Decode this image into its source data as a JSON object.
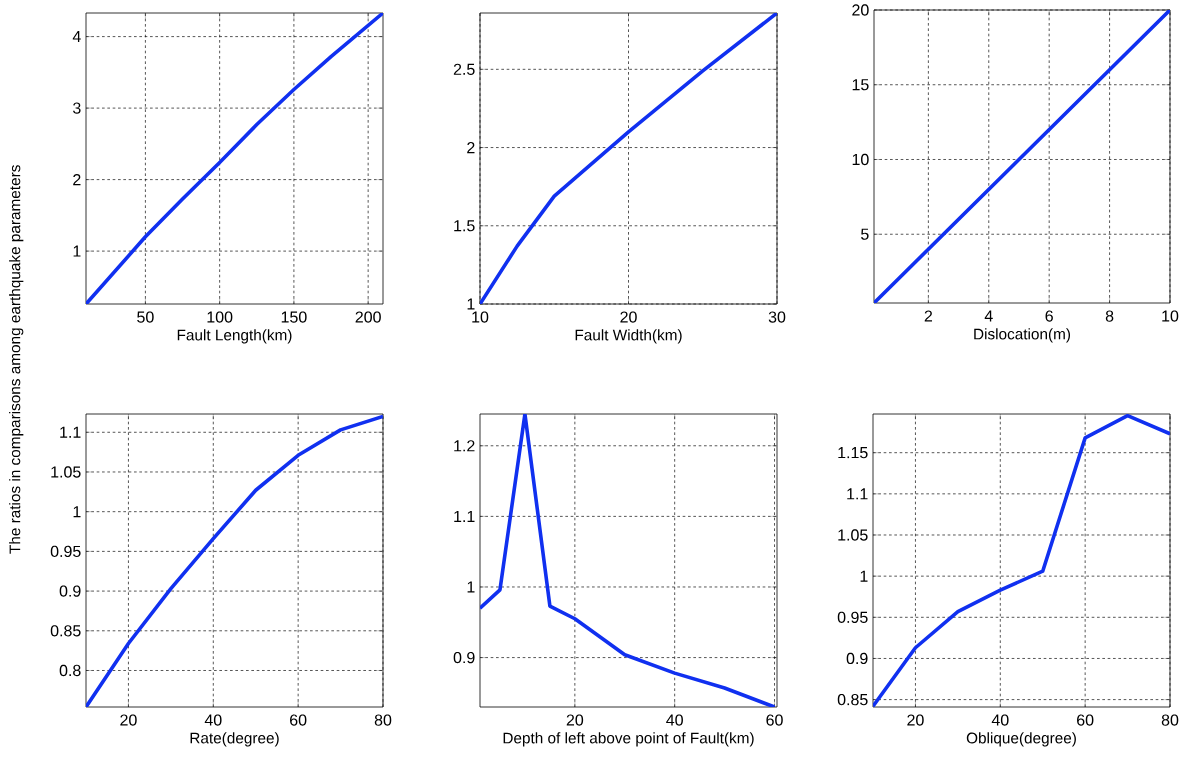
{
  "chart_data": [
    {
      "type": "line",
      "xlabel": "Fault Length(km)",
      "ylabel": "The ratios in comparisons among earthquake parameters",
      "xlim": [
        10,
        210
      ],
      "ylim": [
        0.26,
        4.33
      ],
      "xticks": [
        50,
        100,
        150,
        200
      ],
      "yticks": [
        1,
        2,
        3,
        4
      ],
      "grid": true,
      "marker": "none",
      "line_style": "solid",
      "series": [
        {
          "color": "#1030f0",
          "x": [
            10,
            30,
            50,
            75,
            100,
            125,
            150,
            175,
            210
          ],
          "values": [
            0.26,
            0.73,
            1.2,
            1.73,
            2.24,
            2.77,
            3.26,
            3.72,
            4.33
          ]
        }
      ]
    },
    {
      "type": "line",
      "xlabel": "Fault Width(km)",
      "xlim": [
        10,
        30
      ],
      "ylim": [
        1,
        2.86
      ],
      "xticks": [
        10,
        20,
        30
      ],
      "yticks": [
        1,
        1.5,
        2,
        2.5
      ],
      "grid": true,
      "marker": "none",
      "line_style": "solid",
      "series": [
        {
          "color": "#1030f0",
          "x": [
            10,
            12.5,
            15,
            20,
            25,
            30
          ],
          "values": [
            1,
            1.37,
            1.69,
            2.1,
            2.49,
            2.86
          ]
        }
      ]
    },
    {
      "type": "line",
      "xlabel": "Dislocation(m)",
      "xlim": [
        0.2,
        10
      ],
      "ylim": [
        0.4,
        20
      ],
      "xticks": [
        2,
        4,
        6,
        8,
        10
      ],
      "yticks": [
        5,
        10,
        15,
        20
      ],
      "grid": true,
      "marker": "none",
      "line_style": "solid",
      "series": [
        {
          "color": "#1030f0",
          "x": [
            0.2,
            5,
            10
          ],
          "values": [
            0.4,
            10,
            20
          ]
        }
      ]
    },
    {
      "type": "line",
      "xlabel": "Rate(degree)",
      "xlim": [
        10,
        80
      ],
      "ylim": [
        0.754,
        1.123
      ],
      "xticks": [
        20,
        40,
        60,
        80
      ],
      "yticks": [
        0.8,
        0.85,
        0.9,
        0.95,
        1,
        1.05,
        1.1
      ],
      "grid": true,
      "marker": "none",
      "line_style": "solid",
      "series": [
        {
          "color": "#1030f0",
          "x": [
            10,
            20,
            30,
            40,
            50,
            60,
            70,
            80
          ],
          "values": [
            0.754,
            0.834,
            0.903,
            0.966,
            1.027,
            1.071,
            1.103,
            1.12
          ]
        }
      ]
    },
    {
      "type": "line",
      "xlabel": "Depth of left above point of Fault(km)",
      "xlim": [
        1,
        60.5
      ],
      "ylim": [
        0.83,
        1.245
      ],
      "xticks": [
        20,
        40,
        60
      ],
      "yticks": [
        0.9,
        1,
        1.1,
        1.2
      ],
      "grid": true,
      "marker": "none",
      "line_style": "solid",
      "series": [
        {
          "color": "#1030f0",
          "x": [
            1,
            5,
            10,
            15,
            20,
            30,
            40,
            50,
            60
          ],
          "values": [
            0.97,
            0.996,
            1.245,
            0.973,
            0.955,
            0.904,
            0.878,
            0.857,
            0.83
          ]
        }
      ]
    },
    {
      "type": "line",
      "xlabel": "Oblique(degree)",
      "xlim": [
        10,
        80
      ],
      "ylim": [
        0.841,
        1.197
      ],
      "xticks": [
        20,
        40,
        60,
        80
      ],
      "yticks": [
        0.85,
        0.9,
        0.95,
        1,
        1.05,
        1.1,
        1.15
      ],
      "grid": true,
      "marker": "none",
      "line_style": "solid",
      "series": [
        {
          "color": "#1030f0",
          "x": [
            10,
            20,
            30,
            40,
            50,
            60,
            70,
            80
          ],
          "values": [
            0.842,
            0.913,
            0.957,
            0.983,
            1.006,
            1.168,
            1.195,
            1.173
          ]
        }
      ]
    }
  ]
}
